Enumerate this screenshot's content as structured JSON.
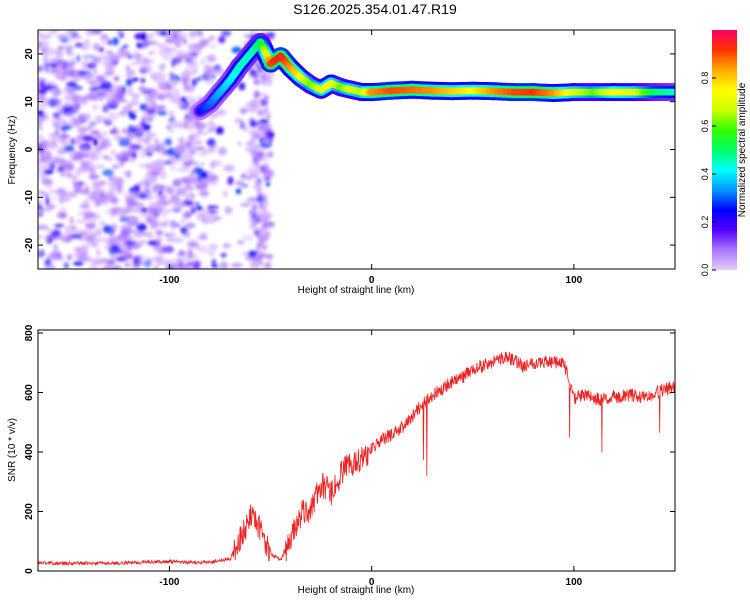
{
  "title": "S126.2025.354.01.47.R19",
  "chart_data": [
    {
      "type": "heatmap",
      "xlabel": "Height of straight line (km)",
      "ylabel": "Frequency (Hz)",
      "xlim": [
        -165,
        150
      ],
      "ylim": [
        -25,
        25
      ],
      "xticks": [
        -100,
        0,
        100
      ],
      "yticks": [
        -20,
        -10,
        0,
        10,
        20
      ],
      "colorbar": {
        "label": "Normalized spectral amplitude",
        "range": [
          0,
          1
        ],
        "ticks": [
          0.0,
          0.2,
          0.4,
          0.6,
          0.8
        ],
        "colors": [
          "#e6ccff",
          "#aa77ff",
          "#5500ff",
          "#0000ff",
          "#0099ff",
          "#00ffff",
          "#00ff66",
          "#33ff00",
          "#ccff00",
          "#ffff00",
          "#ffaa00",
          "#ff3300",
          "#ff0066"
        ]
      },
      "noise_region": {
        "x": [
          -165,
          -50
        ],
        "y": [
          -25,
          25
        ]
      },
      "ridge": {
        "x": [
          -85,
          -80,
          -75,
          -70,
          -65,
          -60,
          -55,
          -50,
          -45,
          -40,
          -35,
          -30,
          -25,
          -20,
          -15,
          -10,
          -5,
          0,
          10,
          20,
          30,
          40,
          50,
          60,
          70,
          80,
          90,
          100,
          110,
          120,
          130,
          140,
          150
        ],
        "y": [
          8,
          9.5,
          12,
          14.5,
          17.5,
          20,
          22.5,
          18,
          19.5,
          17,
          15,
          13.5,
          12.5,
          13.8,
          13,
          12.5,
          12,
          12,
          12.3,
          12.5,
          12.3,
          12.2,
          12.3,
          12.2,
          12,
          12,
          11.8,
          12,
          12,
          12,
          12,
          12,
          12
        ],
        "amplitude": [
          0.25,
          0.3,
          0.35,
          0.4,
          0.45,
          0.45,
          0.5,
          0.9,
          0.95,
          0.85,
          0.75,
          0.6,
          0.7,
          0.75,
          0.6,
          0.7,
          0.65,
          0.85,
          0.9,
          0.88,
          0.85,
          0.8,
          0.75,
          0.85,
          0.9,
          0.92,
          0.85,
          0.7,
          0.6,
          0.75,
          0.7,
          0.5,
          0.45
        ]
      }
    },
    {
      "type": "line",
      "xlabel": "Height of straight line (km)",
      "ylabel": "SNR (10 * v/v)",
      "xlim": [
        -165,
        150
      ],
      "ylim": [
        0,
        810
      ],
      "xticks": [
        -100,
        0,
        100
      ],
      "yticks": [
        0,
        200,
        400,
        600,
        800
      ],
      "color": "#ee2222",
      "x": [
        -165,
        -150,
        -140,
        -130,
        -120,
        -110,
        -100,
        -90,
        -80,
        -70,
        -65,
        -60,
        -55,
        -50,
        -45,
        -40,
        -35,
        -30,
        -25,
        -20,
        -15,
        -10,
        -5,
        0,
        5,
        10,
        15,
        20,
        25,
        30,
        35,
        40,
        45,
        50,
        55,
        60,
        65,
        70,
        75,
        80,
        85,
        90,
        95,
        100,
        105,
        110,
        115,
        120,
        125,
        130,
        135,
        140,
        145,
        150
      ],
      "y": [
        28,
        25,
        27,
        26,
        28,
        30,
        32,
        28,
        30,
        40,
        110,
        180,
        140,
        60,
        35,
        110,
        190,
        210,
        290,
        260,
        330,
        360,
        380,
        410,
        440,
        460,
        480,
        520,
        560,
        590,
        610,
        640,
        650,
        680,
        690,
        700,
        720,
        710,
        690,
        700,
        705,
        700,
        700,
        580,
        590,
        580,
        575,
        585,
        590,
        590,
        580,
        600,
        610,
        620
      ]
    }
  ]
}
